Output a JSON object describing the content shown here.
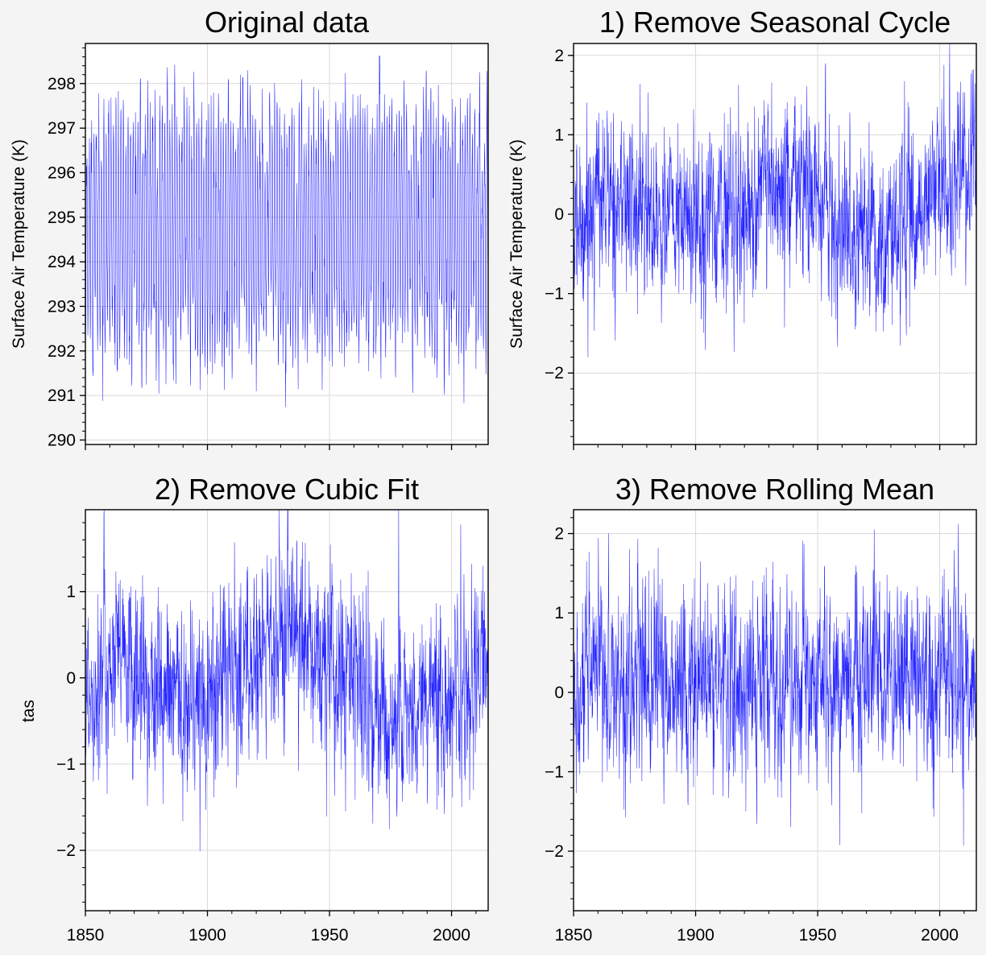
{
  "colors": {
    "series": "#0000ff",
    "background": "#f4f4f4",
    "grid": "#d9d9d9"
  },
  "chart_data": [
    {
      "type": "line",
      "title": "Original data",
      "xlabel": "",
      "ylabel": "Surface Air Temperature (K)",
      "xlim": [
        1850,
        2015
      ],
      "ylim": [
        289.9,
        298.9
      ],
      "xticks": [
        1850,
        1900,
        1950,
        2000
      ],
      "xtick_labels": [
        "",
        "",
        "",
        ""
      ],
      "yticks": [
        290,
        291,
        292,
        293,
        294,
        295,
        296,
        297,
        298
      ],
      "ytick_labels": [
        "290",
        "291",
        "292",
        "293",
        "294",
        "295",
        "296",
        "297",
        "298"
      ],
      "grid": true,
      "series_desc": {
        "kind": "monthly",
        "mean": 294.7,
        "amplitude": 2.4,
        "noise": 0.55,
        "start": 1850,
        "end": 2014
      }
    },
    {
      "type": "line",
      "title": "1) Remove Seasonal Cycle",
      "xlabel": "",
      "ylabel": "Surface Air Temperature (K)",
      "xlim": [
        1850,
        2015
      ],
      "ylim": [
        -2.9,
        2.15
      ],
      "xticks": [
        1850,
        1900,
        1950,
        2000
      ],
      "xtick_labels": [
        "",
        "",
        "",
        ""
      ],
      "yticks": [
        -2,
        -1,
        0,
        1,
        2
      ],
      "ytick_labels": [
        "−2",
        "−1",
        "0",
        "1",
        "2"
      ],
      "grid": true,
      "series_desc": {
        "kind": "anomaly",
        "trend": [
          [
            1850,
            -0.3
          ],
          [
            1860,
            0.3
          ],
          [
            1880,
            0.0
          ],
          [
            1900,
            -0.1
          ],
          [
            1930,
            0.2
          ],
          [
            1945,
            0.3
          ],
          [
            1960,
            -0.2
          ],
          [
            1975,
            -0.4
          ],
          [
            1990,
            0.0
          ],
          [
            2014,
            0.7
          ]
        ],
        "noise": 0.5,
        "start": 1850,
        "end": 2014
      }
    },
    {
      "type": "line",
      "title": "2) Remove Cubic Fit",
      "xlabel": "",
      "ylabel": "tas",
      "xlim": [
        1850,
        2015
      ],
      "ylim": [
        -2.7,
        1.95
      ],
      "xticks": [
        1850,
        1900,
        1950,
        2000
      ],
      "xtick_labels": [
        "1850",
        "1900",
        "1950",
        "2000"
      ],
      "yticks": [
        -2,
        -1,
        0,
        1
      ],
      "ytick_labels": [
        "−2",
        "−1",
        "0",
        "1"
      ],
      "grid": true,
      "series_desc": {
        "kind": "anomaly",
        "trend": [
          [
            1850,
            -0.2
          ],
          [
            1860,
            0.2
          ],
          [
            1885,
            -0.3
          ],
          [
            1900,
            -0.2
          ],
          [
            1935,
            0.5
          ],
          [
            1950,
            0.1
          ],
          [
            1975,
            -0.5
          ],
          [
            1995,
            -0.2
          ],
          [
            2014,
            0.1
          ]
        ],
        "noise": 0.5,
        "start": 1850,
        "end": 2014
      }
    },
    {
      "type": "line",
      "title": "3) Remove Rolling Mean",
      "xlabel": "",
      "ylabel": "",
      "xlim": [
        1850,
        2015
      ],
      "ylim": [
        -2.75,
        2.3
      ],
      "xticks": [
        1850,
        1900,
        1950,
        2000
      ],
      "xtick_labels": [
        "1850",
        "1900",
        "1950",
        "2000"
      ],
      "yticks": [
        -2,
        -1,
        0,
        1,
        2
      ],
      "ytick_labels": [
        "−2",
        "−1",
        "0",
        "1",
        "2"
      ],
      "grid": true,
      "series_desc": {
        "kind": "anomaly",
        "trend": [
          [
            1850,
            -0.3
          ],
          [
            1860,
            0.2
          ],
          [
            1900,
            0.1
          ],
          [
            1950,
            0.0
          ],
          [
            1980,
            0.2
          ],
          [
            2014,
            0.0
          ]
        ],
        "noise": 0.55,
        "start": 1850,
        "end": 2014
      }
    }
  ]
}
